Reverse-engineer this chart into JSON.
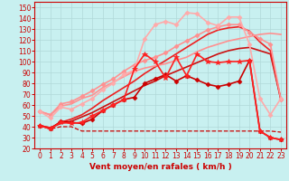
{
  "xlabel": "Vent moyen/en rafales ( km/h )",
  "background_color": "#c8f0f0",
  "grid_color": "#b0d8d8",
  "xlim": [
    -0.5,
    23.5
  ],
  "ylim": [
    20,
    155
  ],
  "yticks": [
    20,
    30,
    40,
    50,
    60,
    70,
    80,
    90,
    100,
    110,
    120,
    130,
    140,
    150
  ],
  "xticks": [
    0,
    1,
    2,
    3,
    4,
    5,
    6,
    7,
    8,
    9,
    10,
    11,
    12,
    13,
    14,
    15,
    16,
    17,
    18,
    19,
    20,
    21,
    22,
    23
  ],
  "lines": [
    {
      "x": [
        0,
        1,
        2,
        3,
        4,
        5,
        6,
        7,
        8,
        9,
        10,
        11,
        12,
        13,
        14,
        15,
        16,
        17,
        18,
        19,
        20,
        21,
        22,
        23
      ],
      "y": [
        41,
        38,
        40,
        40,
        36,
        36,
        36,
        36,
        36,
        36,
        36,
        36,
        36,
        36,
        36,
        36,
        36,
        36,
        36,
        36,
        36,
        36,
        36,
        35
      ],
      "color": "#cc0000",
      "lw": 0.9,
      "marker": null,
      "ms": 0,
      "zorder": 2,
      "dashed": true
    },
    {
      "x": [
        0,
        1,
        2,
        3,
        4,
        5,
        6,
        7,
        8,
        9,
        10,
        11,
        12,
        13,
        14,
        15,
        16,
        17,
        18,
        19,
        20,
        21,
        22,
        23
      ],
      "y": [
        41,
        38,
        45,
        44,
        43,
        47,
        55,
        60,
        65,
        67,
        80,
        84,
        88,
        82,
        87,
        83,
        79,
        77,
        79,
        82,
        101,
        36,
        30,
        28
      ],
      "color": "#cc0000",
      "lw": 1.2,
      "marker": "D",
      "ms": 2.5,
      "zorder": 6
    },
    {
      "x": [
        0,
        1,
        2,
        3,
        4,
        5,
        6,
        7,
        8,
        9,
        10,
        11,
        12,
        13,
        14,
        15,
        16,
        17,
        18,
        19,
        20,
        21,
        22,
        23
      ],
      "y": [
        41,
        38,
        44,
        43,
        44,
        50,
        55,
        60,
        65,
        93,
        107,
        100,
        85,
        104,
        87,
        107,
        100,
        99,
        100,
        100,
        101,
        36,
        30,
        28
      ],
      "color": "#ff2020",
      "lw": 1.2,
      "marker": "*",
      "ms": 4,
      "zorder": 6
    },
    {
      "x": [
        0,
        1,
        2,
        3,
        4,
        5,
        6,
        7,
        8,
        9,
        10,
        11,
        12,
        13,
        14,
        15,
        16,
        17,
        18,
        19,
        20,
        21,
        22,
        23
      ],
      "y": [
        41,
        39,
        43,
        45,
        49,
        53,
        58,
        63,
        68,
        73,
        78,
        82,
        87,
        91,
        95,
        99,
        103,
        107,
        110,
        112,
        113,
        110,
        107,
        65
      ],
      "color": "#cc1010",
      "lw": 1.2,
      "marker": null,
      "ms": 0,
      "zorder": 3
    },
    {
      "x": [
        0,
        1,
        2,
        3,
        4,
        5,
        6,
        7,
        8,
        9,
        10,
        11,
        12,
        13,
        14,
        15,
        16,
        17,
        18,
        19,
        20,
        21,
        22,
        23
      ],
      "y": [
        41,
        39,
        44,
        47,
        51,
        57,
        64,
        70,
        76,
        82,
        89,
        95,
        101,
        107,
        113,
        119,
        125,
        129,
        131,
        132,
        128,
        118,
        110,
        65
      ],
      "color": "#ee2020",
      "lw": 1.2,
      "marker": null,
      "ms": 0,
      "zorder": 3
    },
    {
      "x": [
        0,
        1,
        2,
        3,
        4,
        5,
        6,
        7,
        8,
        9,
        10,
        11,
        12,
        13,
        14,
        15,
        16,
        17,
        18,
        19,
        20,
        21,
        22,
        23
      ],
      "y": [
        54,
        51,
        59,
        61,
        66,
        69,
        76,
        81,
        86,
        91,
        94,
        96,
        98,
        101,
        104,
        109,
        113,
        116,
        119,
        121,
        123,
        125,
        126,
        125
      ],
      "color": "#ff9090",
      "lw": 1.2,
      "marker": null,
      "ms": 0,
      "zorder": 4
    },
    {
      "x": [
        0,
        1,
        2,
        3,
        4,
        5,
        6,
        7,
        8,
        9,
        10,
        11,
        12,
        13,
        14,
        15,
        16,
        17,
        18,
        19,
        20,
        21,
        22,
        23
      ],
      "y": [
        54,
        51,
        61,
        63,
        68,
        73,
        79,
        84,
        91,
        97,
        101,
        104,
        108,
        114,
        119,
        124,
        129,
        132,
        134,
        134,
        127,
        121,
        116,
        65
      ],
      "color": "#ff9090",
      "lw": 1.2,
      "marker": "D",
      "ms": 2.5,
      "zorder": 4
    },
    {
      "x": [
        0,
        1,
        2,
        3,
        4,
        5,
        6,
        7,
        8,
        9,
        10,
        11,
        12,
        13,
        14,
        15,
        16,
        17,
        18,
        19,
        20,
        21,
        22,
        23
      ],
      "y": [
        54,
        48,
        58,
        56,
        61,
        66,
        74,
        80,
        88,
        92,
        121,
        134,
        137,
        134,
        145,
        144,
        136,
        133,
        141,
        141,
        116,
        66,
        51,
        66
      ],
      "color": "#ffaaaa",
      "lw": 1.2,
      "marker": "D",
      "ms": 2.5,
      "zorder": 4
    }
  ]
}
